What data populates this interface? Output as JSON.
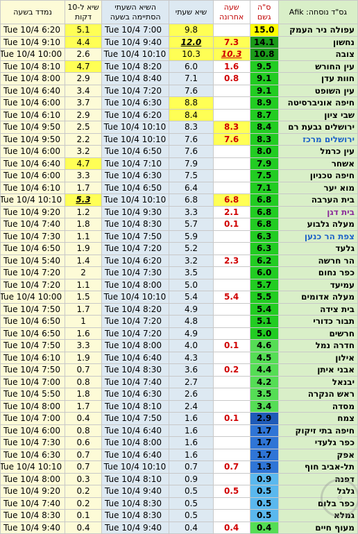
{
  "headers": {
    "station": "גס\"ד נוסחה: Afik",
    "total": "ס\"ה גשם",
    "last": "שעה אחרונה",
    "hour": "שיא שעתי",
    "hour_time": "השיא השעתי הסתיימה בשעה",
    "ten": "שיא ל-10 דקות",
    "measured": "נמדד בשעה"
  },
  "rows": [
    {
      "station": "עפולה ניר העמק",
      "total": "15.0",
      "last": "",
      "hour": "9.8",
      "hour_time": "Tue 10/4 7:00",
      "ten": "5.1",
      "measured": "Tue 10/4 6:20",
      "total_bg": "#ffff00",
      "hour_hl": true,
      "last_hl": false,
      "ten_hl": true,
      "hour_em": false,
      "last_em": false,
      "ten_em": false,
      "station_color": "#000000"
    },
    {
      "station": "נחשון",
      "total": "14.1",
      "last": "7.3",
      "hour": "12.0",
      "hour_time": "Tue 10/4 9:40",
      "ten": "4.4",
      "measured": "Tue 10/4 9:10",
      "total_bg": "#1a9a1a",
      "hour_hl": true,
      "last_hl": true,
      "ten_hl": true,
      "hour_em": true,
      "last_em": false,
      "ten_em": false,
      "station_color": "#000000"
    },
    {
      "station": "צובה",
      "total": "10.8",
      "last": "10.3",
      "hour": "10.3",
      "hour_time": "Tue 10/4 10:10",
      "ten": "2.6",
      "measured": "Tue 10/4 10:00",
      "total_bg": "#1a9a1a",
      "hour_hl": true,
      "last_hl": true,
      "ten_hl": false,
      "hour_em": false,
      "last_em": true,
      "ten_em": false,
      "station_color": "#000000"
    },
    {
      "station": "עין החורש",
      "total": "9.5",
      "last": "1.6",
      "hour": "6.0",
      "hour_time": "Tue 10/4 8:20",
      "ten": "4.7",
      "measured": "Tue 10/4 8:10",
      "total_bg": "#22cc22",
      "hour_hl": false,
      "last_hl": false,
      "ten_hl": true,
      "hour_em": false,
      "last_em": false,
      "ten_em": false,
      "station_color": "#000000"
    },
    {
      "station": "חוות עדן",
      "total": "9.1",
      "last": "0.8",
      "hour": "7.1",
      "hour_time": "Tue 10/4 8:40",
      "ten": "2.9",
      "measured": "Tue 10/4 8:00",
      "total_bg": "#22cc22",
      "hour_hl": false,
      "last_hl": false,
      "ten_hl": false,
      "hour_em": false,
      "last_em": false,
      "ten_em": false,
      "station_color": "#000000"
    },
    {
      "station": "עין השופט",
      "total": "9.1",
      "last": "",
      "hour": "7.6",
      "hour_time": "Tue 10/4 7:20",
      "ten": "3.4",
      "measured": "Tue 10/4 6:40",
      "total_bg": "#22cc22",
      "hour_hl": false,
      "last_hl": false,
      "ten_hl": false,
      "hour_em": false,
      "last_em": false,
      "ten_em": false,
      "station_color": "#000000"
    },
    {
      "station": "חיפה אוניברסיטה",
      "total": "8.9",
      "last": "",
      "hour": "8.8",
      "hour_time": "Tue 10/4 6:30",
      "ten": "3.7",
      "measured": "Tue 10/4 6:00",
      "total_bg": "#22cc22",
      "hour_hl": true,
      "last_hl": false,
      "ten_hl": false,
      "hour_em": false,
      "last_em": false,
      "ten_em": false,
      "station_color": "#000000"
    },
    {
      "station": "שבי ציון",
      "total": "8.7",
      "last": "",
      "hour": "8.4",
      "hour_time": "Tue 10/4 6:20",
      "ten": "2.9",
      "measured": "Tue 10/4 6:10",
      "total_bg": "#22cc22",
      "hour_hl": true,
      "last_hl": false,
      "ten_hl": false,
      "hour_em": false,
      "last_em": false,
      "ten_em": false,
      "station_color": "#000000"
    },
    {
      "station": "ירושלים גבעת רם",
      "total": "8.4",
      "last": "8.3",
      "hour": "8.3",
      "hour_time": "Tue 10/4 10:10",
      "ten": "2.5",
      "measured": "Tue 10/4 9:50",
      "total_bg": "#22cc22",
      "hour_hl": false,
      "last_hl": true,
      "ten_hl": false,
      "hour_em": false,
      "last_em": false,
      "ten_em": false,
      "station_color": "#000000"
    },
    {
      "station": "ירושלים מרכז",
      "total": "8.3",
      "last": "7.6",
      "hour": "7.6",
      "hour_time": "Tue 10/4 10:10",
      "ten": "2.2",
      "measured": "Tue 10/4 9:50",
      "total_bg": "#22cc22",
      "hour_hl": false,
      "last_hl": true,
      "ten_hl": false,
      "hour_em": false,
      "last_em": false,
      "ten_em": false,
      "station_color": "#1e62c8"
    },
    {
      "station": "עין כרמל",
      "total": "8.0",
      "last": "",
      "hour": "7.6",
      "hour_time": "Tue 10/4 6:50",
      "ten": "3.2",
      "measured": "Tue 10/4 6:00",
      "total_bg": "#22cc22",
      "hour_hl": false,
      "last_hl": false,
      "ten_hl": false,
      "hour_em": false,
      "last_em": false,
      "ten_em": false,
      "station_color": "#000000"
    },
    {
      "station": "אשחר",
      "total": "7.9",
      "last": "",
      "hour": "7.9",
      "hour_time": "Tue 10/4 7:10",
      "ten": "4.7",
      "measured": "Tue 10/4 6:40",
      "total_bg": "#22cc22",
      "hour_hl": false,
      "last_hl": false,
      "ten_hl": true,
      "hour_em": false,
      "last_em": false,
      "ten_em": false,
      "station_color": "#000000"
    },
    {
      "station": "חיפה טכניון",
      "total": "7.5",
      "last": "",
      "hour": "7.5",
      "hour_time": "Tue 10/4 6:30",
      "ten": "3.3",
      "measured": "Tue 10/4 6:00",
      "total_bg": "#22cc22",
      "hour_hl": false,
      "last_hl": false,
      "ten_hl": false,
      "hour_em": false,
      "last_em": false,
      "ten_em": false,
      "station_color": "#000000"
    },
    {
      "station": "מוא יער",
      "total": "7.1",
      "last": "",
      "hour": "6.4",
      "hour_time": "Tue 10/4 6:50",
      "ten": "1.7",
      "measured": "Tue 10/4 6:10",
      "total_bg": "#22cc22",
      "hour_hl": false,
      "last_hl": false,
      "ten_hl": false,
      "hour_em": false,
      "last_em": false,
      "ten_em": false,
      "station_color": "#000000"
    },
    {
      "station": "בית הערבה",
      "total": "6.8",
      "last": "6.8",
      "hour": "6.8",
      "hour_time": "Tue 10/4 10:10",
      "ten": "5.3",
      "measured": "Tue 10/4 10:10",
      "total_bg": "#22cc22",
      "hour_hl": false,
      "last_hl": true,
      "ten_hl": true,
      "hour_em": false,
      "last_em": false,
      "ten_em": true,
      "station_color": "#000000"
    },
    {
      "station": "בית דגן",
      "total": "6.8",
      "last": "2.1",
      "hour": "3.3",
      "hour_time": "Tue 10/4 9:30",
      "ten": "1.2",
      "measured": "Tue 10/4 9:20",
      "total_bg": "#22cc22",
      "hour_hl": false,
      "last_hl": false,
      "ten_hl": false,
      "hour_em": false,
      "last_em": false,
      "ten_em": false,
      "station_color": "#8a2a9a"
    },
    {
      "station": "מעלה גלבוע",
      "total": "6.8",
      "last": "0.1",
      "hour": "5.7",
      "hour_time": "Tue 10/4 8:30",
      "ten": "1.8",
      "measured": "Tue 10/4 7:40",
      "total_bg": "#22cc22",
      "hour_hl": false,
      "last_hl": false,
      "ten_hl": false,
      "hour_em": false,
      "last_em": false,
      "ten_em": false,
      "station_color": "#000000"
    },
    {
      "station": "צפת הר כנען",
      "total": "6.3",
      "last": "",
      "hour": "5.9",
      "hour_time": "Tue 10/4 7:50",
      "ten": "1.1",
      "measured": "Tue 10/4 7:30",
      "total_bg": "#22cc22",
      "hour_hl": false,
      "last_hl": false,
      "ten_hl": false,
      "hour_em": false,
      "last_em": false,
      "ten_em": false,
      "station_color": "#1e62c8"
    },
    {
      "station": "גלעד",
      "total": "6.3",
      "last": "",
      "hour": "5.2",
      "hour_time": "Tue 10/4 7:20",
      "ten": "1.9",
      "measured": "Tue 10/4 6:50",
      "total_bg": "#22cc22",
      "hour_hl": false,
      "last_hl": false,
      "ten_hl": false,
      "hour_em": false,
      "last_em": false,
      "ten_em": false,
      "station_color": "#000000"
    },
    {
      "station": "הר חרשה",
      "total": "6.2",
      "last": "2.3",
      "hour": "3.2",
      "hour_time": "Tue 10/4 6:20",
      "ten": "1.4",
      "measured": "Tue 10/4 5:40",
      "total_bg": "#22cc22",
      "hour_hl": false,
      "last_hl": false,
      "ten_hl": false,
      "hour_em": false,
      "last_em": false,
      "ten_em": false,
      "station_color": "#000000"
    },
    {
      "station": "כפר נחום",
      "total": "6.0",
      "last": "",
      "hour": "3.5",
      "hour_time": "Tue 10/4 7:30",
      "ten": "2",
      "measured": "Tue 10/4 7:20",
      "total_bg": "#22cc22",
      "hour_hl": false,
      "last_hl": false,
      "ten_hl": false,
      "hour_em": false,
      "last_em": false,
      "ten_em": false,
      "station_color": "#000000"
    },
    {
      "station": "עמיעד",
      "total": "5.7",
      "last": "",
      "hour": "5.0",
      "hour_time": "Tue 10/4 8:00",
      "ten": "1.1",
      "measured": "Tue 10/4 7:20",
      "total_bg": "#22cc22",
      "hour_hl": false,
      "last_hl": false,
      "ten_hl": false,
      "hour_em": false,
      "last_em": false,
      "ten_em": false,
      "station_color": "#000000"
    },
    {
      "station": "מעלה אדומים",
      "total": "5.5",
      "last": "5.4",
      "hour": "5.4",
      "hour_time": "Tue 10/4 10:10",
      "ten": "1.5",
      "measured": "Tue 10/4 10:00",
      "total_bg": "#22cc22",
      "hour_hl": false,
      "last_hl": false,
      "ten_hl": false,
      "hour_em": false,
      "last_em": false,
      "ten_em": false,
      "station_color": "#000000"
    },
    {
      "station": "בית צידה",
      "total": "5.4",
      "last": "",
      "hour": "4.9",
      "hour_time": "Tue 10/4 8:20",
      "ten": "1.7",
      "measured": "Tue 10/4 7:50",
      "total_bg": "#22cc22",
      "hour_hl": false,
      "last_hl": false,
      "ten_hl": false,
      "hour_em": false,
      "last_em": false,
      "ten_em": false,
      "station_color": "#000000"
    },
    {
      "station": "תבור כדורי",
      "total": "5.1",
      "last": "",
      "hour": "4.8",
      "hour_time": "Tue 10/4 7:20",
      "ten": "1",
      "measured": "Tue 10/4 6:50",
      "total_bg": "#22cc22",
      "hour_hl": false,
      "last_hl": false,
      "ten_hl": false,
      "hour_em": false,
      "last_em": false,
      "ten_em": false,
      "station_color": "#000000"
    },
    {
      "station": "חרשים",
      "total": "5.0",
      "last": "",
      "hour": "4.9",
      "hour_time": "Tue 10/4 7:20",
      "ten": "1.6",
      "measured": "Tue 10/4 6:50",
      "total_bg": "#22cc22",
      "hour_hl": false,
      "last_hl": false,
      "ten_hl": false,
      "hour_em": false,
      "last_em": false,
      "ten_em": false,
      "station_color": "#000000"
    },
    {
      "station": "חדרה נמל",
      "total": "4.6",
      "last": "0.1",
      "hour": "4.0",
      "hour_time": "Tue 10/4 8:00",
      "ten": "3.3",
      "measured": "Tue 10/4 7:50",
      "total_bg": "#55dd55",
      "hour_hl": false,
      "last_hl": false,
      "ten_hl": false,
      "hour_em": false,
      "last_em": false,
      "ten_em": false,
      "station_color": "#000000"
    },
    {
      "station": "אילון",
      "total": "4.5",
      "last": "",
      "hour": "4.3",
      "hour_time": "Tue 10/4 6:40",
      "ten": "1.9",
      "measured": "Tue 10/4 6:10",
      "total_bg": "#55dd55",
      "hour_hl": false,
      "last_hl": false,
      "ten_hl": false,
      "hour_em": false,
      "last_em": false,
      "ten_em": false,
      "station_color": "#000000"
    },
    {
      "station": "אבני איתן",
      "total": "4.4",
      "last": "0.2",
      "hour": "3.6",
      "hour_time": "Tue 10/4 8:30",
      "ten": "0.7",
      "measured": "Tue 10/4 7:50",
      "total_bg": "#55dd55",
      "hour_hl": false,
      "last_hl": false,
      "ten_hl": false,
      "hour_em": false,
      "last_em": false,
      "ten_em": false,
      "station_color": "#000000"
    },
    {
      "station": "יבנאל",
      "total": "4.2",
      "last": "",
      "hour": "2.7",
      "hour_time": "Tue 10/4 7:40",
      "ten": "0.8",
      "measured": "Tue 10/4 7:00",
      "total_bg": "#55dd55",
      "hour_hl": false,
      "last_hl": false,
      "ten_hl": false,
      "hour_em": false,
      "last_em": false,
      "ten_em": false,
      "station_color": "#000000"
    },
    {
      "station": "ראש הנקרה",
      "total": "3.5",
      "last": "",
      "hour": "2.6",
      "hour_time": "Tue 10/4 6:30",
      "ten": "1.8",
      "measured": "Tue 10/4 5:50",
      "total_bg": "#55dd55",
      "hour_hl": false,
      "last_hl": false,
      "ten_hl": false,
      "hour_em": false,
      "last_em": false,
      "ten_em": false,
      "station_color": "#000000"
    },
    {
      "station": "מסדה",
      "total": "3.4",
      "last": "",
      "hour": "2.4",
      "hour_time": "Tue 10/4 8:10",
      "ten": "1.7",
      "measured": "Tue 10/4 8:00",
      "total_bg": "#55dd55",
      "hour_hl": false,
      "last_hl": false,
      "ten_hl": false,
      "hour_em": false,
      "last_em": false,
      "ten_em": false,
      "station_color": "#000000"
    },
    {
      "station": "צמח",
      "total": "2.9",
      "last": "0.1",
      "hour": "1.6",
      "hour_time": "Tue 10/4 7:50",
      "ten": "0.4",
      "measured": "Tue 10/4 7:00",
      "total_bg": "#1f5bb8",
      "hour_hl": false,
      "last_hl": false,
      "ten_hl": false,
      "hour_em": false,
      "last_em": false,
      "ten_em": false,
      "station_color": "#000000"
    },
    {
      "station": "חיפה בתי זיקוק",
      "total": "1.7",
      "last": "",
      "hour": "1.6",
      "hour_time": "Tue 10/4 6:40",
      "ten": "0.8",
      "measured": "Tue 10/4 6:00",
      "total_bg": "#2f75d6",
      "hour_hl": false,
      "last_hl": false,
      "ten_hl": false,
      "hour_em": false,
      "last_em": false,
      "ten_em": false,
      "station_color": "#000000"
    },
    {
      "station": "כפר גלעדי",
      "total": "1.7",
      "last": "",
      "hour": "1.6",
      "hour_time": "Tue 10/4 8:00",
      "ten": "0.6",
      "measured": "Tue 10/4 7:30",
      "total_bg": "#2f75d6",
      "hour_hl": false,
      "last_hl": false,
      "ten_hl": false,
      "hour_em": false,
      "last_em": false,
      "ten_em": false,
      "station_color": "#000000"
    },
    {
      "station": "אפק",
      "total": "1.7",
      "last": "",
      "hour": "1.6",
      "hour_time": "Tue 10/4 6:40",
      "ten": "0.7",
      "measured": "Tue 10/4 6:30",
      "total_bg": "#2f75d6",
      "hour_hl": false,
      "last_hl": false,
      "ten_hl": false,
      "hour_em": false,
      "last_em": false,
      "ten_em": false,
      "station_color": "#000000"
    },
    {
      "station": "תל-אביב חוף",
      "total": "1.3",
      "last": "0.7",
      "hour": "0.7",
      "hour_time": "Tue 10/4 10:10",
      "ten": "0.7",
      "measured": "Tue 10/4 10:10",
      "total_bg": "#2f75d6",
      "hour_hl": false,
      "last_hl": false,
      "ten_hl": false,
      "hour_em": false,
      "last_em": false,
      "ten_em": false,
      "station_color": "#000000"
    },
    {
      "station": "דפנה",
      "total": "0.9",
      "last": "",
      "hour": "0.9",
      "hour_time": "Tue 10/4 8:10",
      "ten": "0.3",
      "measured": "Tue 10/4 8:00",
      "total_bg": "#5ab8ee",
      "hour_hl": false,
      "last_hl": false,
      "ten_hl": false,
      "hour_em": false,
      "last_em": false,
      "ten_em": false,
      "station_color": "#000000"
    },
    {
      "station": "גלגל",
      "total": "0.5",
      "last": "0.5",
      "hour": "0.5",
      "hour_time": "Tue 10/4 9:40",
      "ten": "0.2",
      "measured": "Tue 10/4 9:20",
      "total_bg": "#5ab8ee",
      "hour_hl": false,
      "last_hl": false,
      "ten_hl": false,
      "hour_em": false,
      "last_em": false,
      "ten_em": false,
      "station_color": "#000000"
    },
    {
      "station": "כפר בלום",
      "total": "0.5",
      "last": "",
      "hour": "0.5",
      "hour_time": "Tue 10/4 8:30",
      "ten": "0.2",
      "measured": "Tue 10/4 7:40",
      "total_bg": "#5ab8ee",
      "hour_hl": false,
      "last_hl": false,
      "ten_hl": false,
      "hour_em": false,
      "last_em": false,
      "ten_em": false,
      "station_color": "#000000"
    },
    {
      "station": "גמלא",
      "total": "0.5",
      "last": "",
      "hour": "0.5",
      "hour_time": "Tue 10/4 8:30",
      "ten": "0.1",
      "measured": "Tue 10/4 8:30",
      "total_bg": "#5ab8ee",
      "hour_hl": false,
      "last_hl": false,
      "ten_hl": false,
      "hour_em": false,
      "last_em": false,
      "ten_em": false,
      "station_color": "#000000"
    },
    {
      "station": "מעוף חיים",
      "total": "0.4",
      "last": "0.4",
      "hour": "0.4",
      "hour_time": "Tue 10/4 9:40",
      "ten": "0.4",
      "measured": "Tue 10/4 9:40",
      "total_bg": "#55dd55",
      "hour_hl": false,
      "last_hl": false,
      "ten_hl": false,
      "hour_em": false,
      "last_em": false,
      "ten_em": false,
      "station_color": "#000000"
    }
  ],
  "colors": {
    "highlight": "#ffff55",
    "red_text": "#d00000",
    "station_bg": "#d9efc8",
    "hour_bg": "#dde9f2",
    "ten_bg": "#fdfbd7"
  }
}
